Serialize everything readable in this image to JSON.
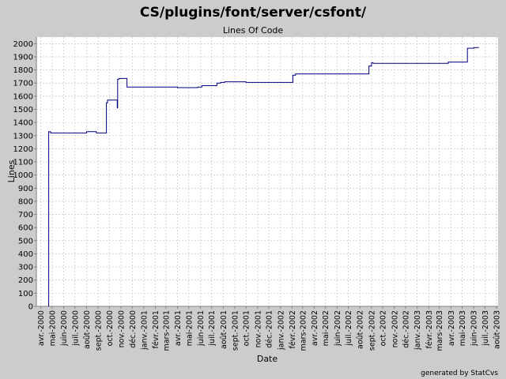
{
  "chart_data": {
    "type": "line",
    "title": "CS/plugins/font/server/csfont/",
    "subtitle": "Lines Of Code",
    "xlabel": "Date",
    "ylabel": "Lines",
    "ylim": [
      0,
      2050
    ],
    "yticks": [
      0,
      100,
      200,
      300,
      400,
      500,
      600,
      700,
      800,
      900,
      1000,
      1100,
      1200,
      1300,
      1400,
      1500,
      1600,
      1700,
      1800,
      1900,
      2000
    ],
    "xlim": [
      "2000-03-20",
      "2003-08-05"
    ],
    "xticks": [
      {
        "date": "2000-04-01",
        "label": "avr.-2000"
      },
      {
        "date": "2000-05-01",
        "label": "mai-2000"
      },
      {
        "date": "2000-06-01",
        "label": "juin-2000"
      },
      {
        "date": "2000-07-01",
        "label": "juil.-2000"
      },
      {
        "date": "2000-08-01",
        "label": "août-2000"
      },
      {
        "date": "2000-09-01",
        "label": "sept.-2000"
      },
      {
        "date": "2000-10-01",
        "label": "oct.-2000"
      },
      {
        "date": "2000-11-01",
        "label": "nov.-2000"
      },
      {
        "date": "2000-12-01",
        "label": "déc.-2000"
      },
      {
        "date": "2001-01-01",
        "label": "janv.-2001"
      },
      {
        "date": "2001-02-01",
        "label": "févr.-2001"
      },
      {
        "date": "2001-03-01",
        "label": "mars-2001"
      },
      {
        "date": "2001-04-01",
        "label": "avr.-2001"
      },
      {
        "date": "2001-05-01",
        "label": "mai-2001"
      },
      {
        "date": "2001-06-01",
        "label": "juin-2001"
      },
      {
        "date": "2001-07-01",
        "label": "juil.-2001"
      },
      {
        "date": "2001-08-01",
        "label": "août-2001"
      },
      {
        "date": "2001-09-01",
        "label": "sept.-2001"
      },
      {
        "date": "2001-10-01",
        "label": "oct.-2001"
      },
      {
        "date": "2001-11-01",
        "label": "nov.-2001"
      },
      {
        "date": "2001-12-01",
        "label": "déc.-2001"
      },
      {
        "date": "2002-01-01",
        "label": "janv.-2002"
      },
      {
        "date": "2002-02-01",
        "label": "févr.-2002"
      },
      {
        "date": "2002-03-01",
        "label": "mars-2002"
      },
      {
        "date": "2002-04-01",
        "label": "avr.-2002"
      },
      {
        "date": "2002-05-01",
        "label": "mai-2002"
      },
      {
        "date": "2002-06-01",
        "label": "juin-2002"
      },
      {
        "date": "2002-07-01",
        "label": "juil.-2002"
      },
      {
        "date": "2002-08-01",
        "label": "août-2002"
      },
      {
        "date": "2002-09-01",
        "label": "sept.-2002"
      },
      {
        "date": "2002-10-01",
        "label": "oct.-2002"
      },
      {
        "date": "2002-11-01",
        "label": "nov.-2002"
      },
      {
        "date": "2002-12-01",
        "label": "déc.-2002"
      },
      {
        "date": "2003-01-01",
        "label": "janv.-2003"
      },
      {
        "date": "2003-02-01",
        "label": "févr.-2003"
      },
      {
        "date": "2003-03-01",
        "label": "mars-2003"
      },
      {
        "date": "2003-04-01",
        "label": "avr.-2003"
      },
      {
        "date": "2003-05-01",
        "label": "mai-2003"
      },
      {
        "date": "2003-06-01",
        "label": "juin-2003"
      },
      {
        "date": "2003-07-01",
        "label": "juil.-2003"
      },
      {
        "date": "2003-08-01",
        "label": "août-2003"
      }
    ],
    "grid": true,
    "line_color": "#000080",
    "series": [
      {
        "points": [
          [
            "2000-04-22",
            0
          ],
          [
            "2000-04-22",
            1330
          ],
          [
            "2000-04-27",
            1330
          ],
          [
            "2000-04-27",
            1320
          ],
          [
            "2000-08-01",
            1320
          ],
          [
            "2000-08-01",
            1330
          ],
          [
            "2000-08-27",
            1330
          ],
          [
            "2000-08-27",
            1320
          ],
          [
            "2000-09-23",
            1320
          ],
          [
            "2000-09-23",
            1550
          ],
          [
            "2000-09-26",
            1550
          ],
          [
            "2000-09-26",
            1570
          ],
          [
            "2000-10-22",
            1570
          ],
          [
            "2000-10-22",
            1510
          ],
          [
            "2000-10-23",
            1510
          ],
          [
            "2000-10-23",
            1730
          ],
          [
            "2000-10-27",
            1730
          ],
          [
            "2000-10-27",
            1735
          ],
          [
            "2000-11-17",
            1735
          ],
          [
            "2000-11-17",
            1670
          ],
          [
            "2001-04-01",
            1670
          ],
          [
            "2001-04-01",
            1665
          ],
          [
            "2001-05-25",
            1665
          ],
          [
            "2001-05-25",
            1670
          ],
          [
            "2001-06-05",
            1670
          ],
          [
            "2001-06-05",
            1680
          ],
          [
            "2001-07-15",
            1680
          ],
          [
            "2001-07-15",
            1700
          ],
          [
            "2001-07-25",
            1700
          ],
          [
            "2001-07-25",
            1705
          ],
          [
            "2001-08-05",
            1705
          ],
          [
            "2001-08-05",
            1710
          ],
          [
            "2001-10-01",
            1710
          ],
          [
            "2001-10-01",
            1705
          ],
          [
            "2002-02-03",
            1705
          ],
          [
            "2002-02-03",
            1760
          ],
          [
            "2002-02-10",
            1760
          ],
          [
            "2002-02-10",
            1770
          ],
          [
            "2002-08-25",
            1770
          ],
          [
            "2002-08-25",
            1830
          ],
          [
            "2002-09-01",
            1830
          ],
          [
            "2002-09-01",
            1855
          ],
          [
            "2002-09-05",
            1855
          ],
          [
            "2002-09-05",
            1850
          ],
          [
            "2003-03-25",
            1850
          ],
          [
            "2003-03-25",
            1860
          ],
          [
            "2003-05-15",
            1860
          ],
          [
            "2003-05-15",
            1965
          ],
          [
            "2003-06-01",
            1965
          ],
          [
            "2003-06-01",
            1970
          ],
          [
            "2003-06-15",
            1970
          ]
        ]
      }
    ]
  },
  "footer": "generated by StatCvs"
}
